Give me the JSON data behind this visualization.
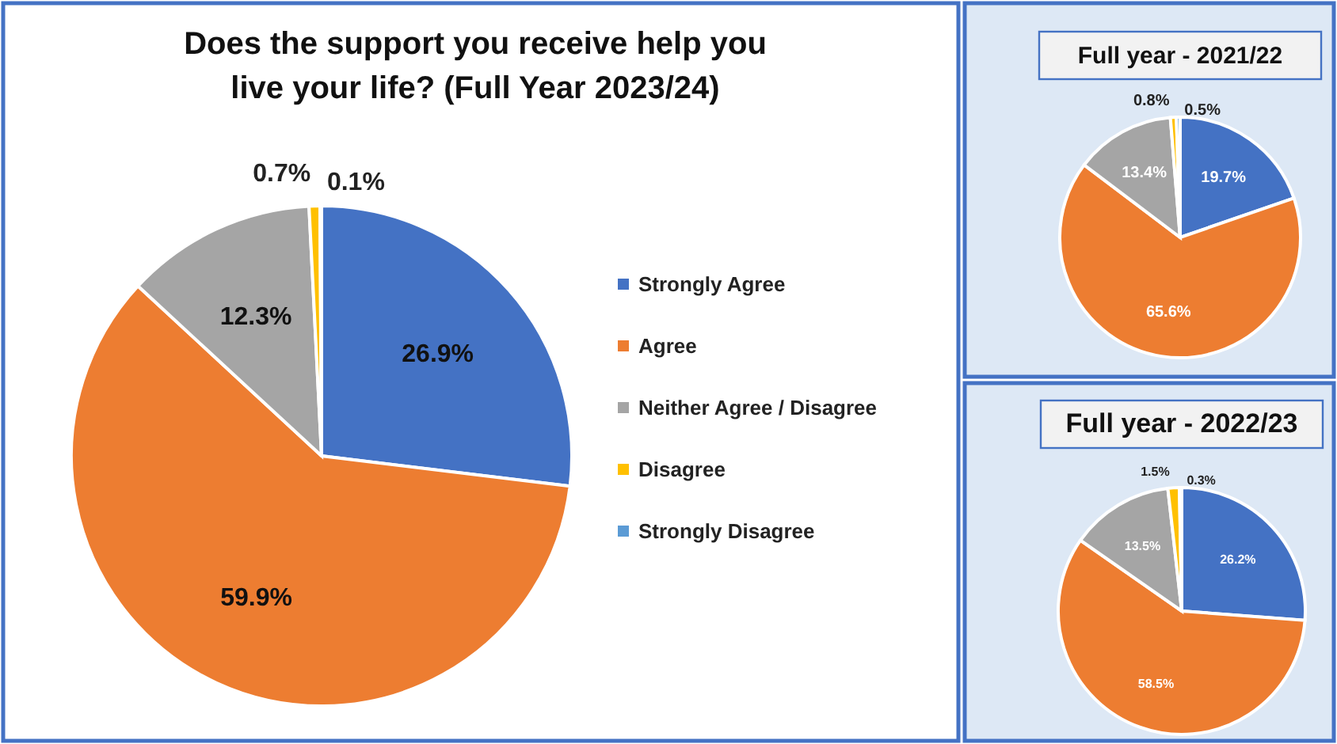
{
  "chart_data": [
    {
      "type": "pie",
      "title": "Does the support you receive help you live your life? (Full Year 2023/24)",
      "categories": [
        "Strongly Agree",
        "Agree",
        "Neither Agree / Disagree",
        "Disagree",
        "Strongly Disagree"
      ],
      "values": [
        26.9,
        59.9,
        12.3,
        0.7,
        0.1
      ],
      "value_labels": [
        "26.9%",
        "59.9%",
        "12.3%",
        "0.7%",
        "0.1%"
      ],
      "colors": [
        "#4472c4",
        "#ed7d31",
        "#a5a5a5",
        "#ffc000",
        "#5b9bd5"
      ],
      "legend": "right"
    },
    {
      "type": "pie",
      "title": "Full year - 2021/22",
      "categories": [
        null,
        null,
        null,
        null,
        null
      ],
      "values": [
        19.7,
        65.6,
        13.4,
        0.8,
        0.5
      ],
      "value_labels": [
        "19.7%",
        "65.6%",
        "13.4%",
        "0.8%",
        "0.5%"
      ],
      "colors": [
        "#4472c4",
        "#ed7d31",
        "#a5a5a5",
        "#ffc000",
        "#5b9bd5"
      ],
      "legend": false
    },
    {
      "type": "pie",
      "title": "Full year - 2022/23",
      "categories": [
        null,
        null,
        null,
        null,
        null
      ],
      "values": [
        26.2,
        58.5,
        13.5,
        1.5,
        0.3
      ],
      "value_labels": [
        "26.2%",
        "58.5%",
        "13.5%",
        "1.5%",
        "0.3%"
      ],
      "colors": [
        "#4472c4",
        "#ed7d31",
        "#a5a5a5",
        "#ffc000",
        "#5b9bd5"
      ],
      "legend": false
    }
  ]
}
